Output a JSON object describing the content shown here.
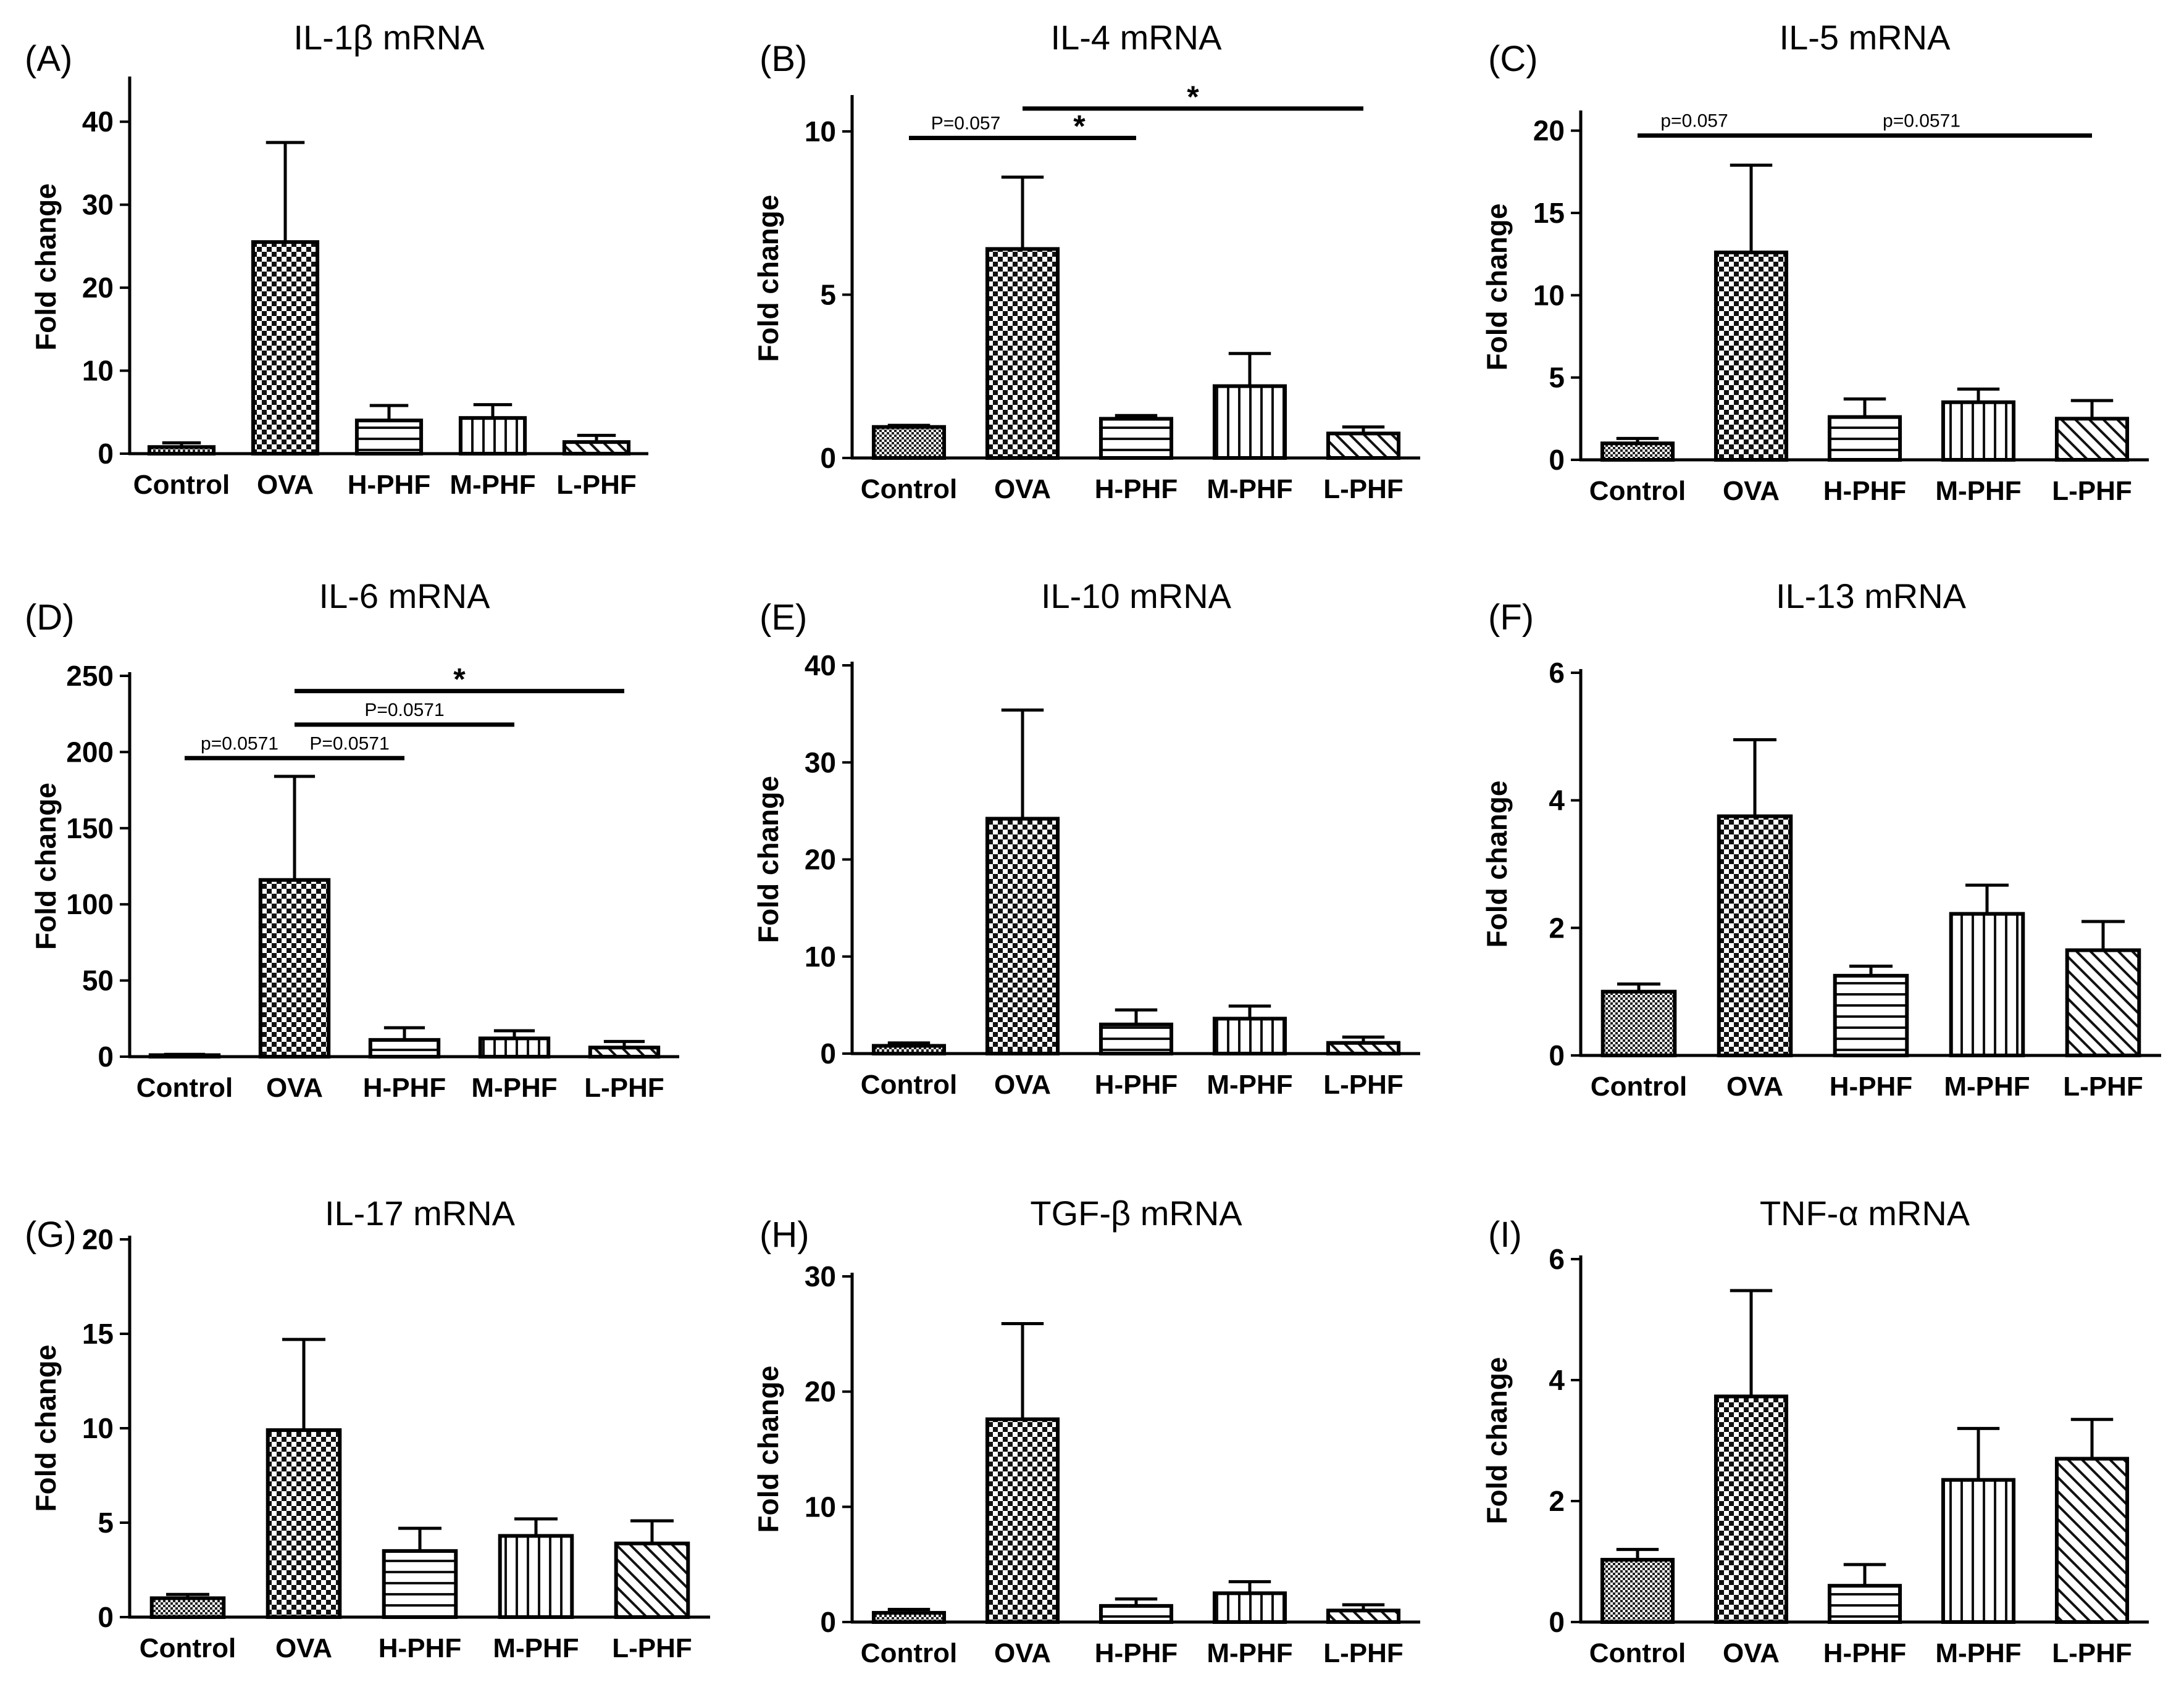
{
  "chart_data": [
    {
      "type": "bar",
      "label": "(A)",
      "title": "IL-1β mRNA",
      "ylabel": "Fold change",
      "categories": [
        "Control",
        "OVA",
        "H-PHF",
        "M-PHF",
        "L-PHF"
      ],
      "values": [
        0.8,
        25.5,
        4.0,
        4.3,
        1.4
      ],
      "errors": [
        0.5,
        12.0,
        1.8,
        1.6,
        0.8
      ],
      "ylim": [
        0,
        45
      ],
      "yticks": [
        "0",
        "10",
        "20",
        "30",
        "40"
      ],
      "annotations": []
    },
    {
      "type": "bar",
      "label": "(B)",
      "title": "IL-4 mRNA",
      "ylabel": "Fold change",
      "categories": [
        "Control",
        "OVA",
        "H-PHF",
        "M-PHF",
        "L-PHF"
      ],
      "values": [
        0.95,
        6.4,
        1.2,
        2.2,
        0.75
      ],
      "errors": [
        0.05,
        2.2,
        0.1,
        1.0,
        0.2
      ],
      "ylim": [
        0,
        11
      ],
      "yticks": [
        "0",
        "5",
        "10"
      ],
      "annotations": [
        {
          "from": 0,
          "to": 1,
          "y": 9.8,
          "text": "P=0.057"
        },
        {
          "from": 1,
          "to": 2,
          "y": 9.8,
          "text": "*"
        },
        {
          "from": 1,
          "to": 4,
          "y": 10.7,
          "text": "*"
        }
      ]
    },
    {
      "type": "bar",
      "label": "(C)",
      "title": "IL-5 mRNA",
      "ylabel": "Fold change",
      "categories": [
        "Control",
        "OVA",
        "H-PHF",
        "M-PHF",
        "L-PHF"
      ],
      "values": [
        1.0,
        12.6,
        2.6,
        3.5,
        2.5
      ],
      "errors": [
        0.3,
        5.3,
        1.1,
        0.8,
        1.1
      ],
      "ylim": [
        0,
        21
      ],
      "yticks": [
        "0",
        "5",
        "10",
        "15",
        "20"
      ],
      "annotations": [
        {
          "from": 0,
          "to": 1,
          "y": 19.7,
          "text": "p=0.057"
        },
        {
          "from": 1,
          "to": 4,
          "y": 19.7,
          "text": "p=0.0571"
        }
      ]
    },
    {
      "type": "bar",
      "label": "(D)",
      "title": "IL-6 mRNA",
      "ylabel": "Fold change",
      "categories": [
        "Control",
        "OVA",
        "H-PHF",
        "M-PHF",
        "L-PHF"
      ],
      "values": [
        1.0,
        116,
        11,
        12,
        6
      ],
      "errors": [
        0.5,
        68,
        8,
        5,
        4
      ],
      "ylim": [
        0,
        250
      ],
      "yticks": [
        "0",
        "50",
        "100",
        "150",
        "200",
        "250"
      ],
      "annotations": [
        {
          "from": 0,
          "to": 1,
          "y": 196,
          "text": "p=0.0571"
        },
        {
          "from": 1,
          "to": 2,
          "y": 196,
          "text": "P=0.0571"
        },
        {
          "from": 1,
          "to": 3,
          "y": 218,
          "text": "P=0.0571"
        },
        {
          "from": 1,
          "to": 4,
          "y": 240,
          "text": "*"
        }
      ]
    },
    {
      "type": "bar",
      "label": "(E)",
      "title": "IL-10 mRNA",
      "ylabel": "Fold change",
      "categories": [
        "Control",
        "OVA",
        "H-PHF",
        "M-PHF",
        "L-PHF"
      ],
      "values": [
        0.8,
        24.2,
        3.0,
        3.6,
        1.1
      ],
      "errors": [
        0.3,
        11.2,
        1.5,
        1.3,
        0.6
      ],
      "ylim": [
        0,
        40
      ],
      "yticks": [
        "0",
        "10",
        "20",
        "30",
        "40"
      ],
      "annotations": []
    },
    {
      "type": "bar",
      "label": "(F)",
      "title": "IL-13 mRNA",
      "ylabel": "Fold change",
      "categories": [
        "Control",
        "OVA",
        "H-PHF",
        "M-PHF",
        "L-PHF"
      ],
      "values": [
        1.0,
        3.75,
        1.25,
        2.22,
        1.65
      ],
      "errors": [
        0.12,
        1.2,
        0.15,
        0.45,
        0.45
      ],
      "ylim": [
        0,
        6
      ],
      "yticks": [
        "0",
        "2",
        "4",
        "6"
      ],
      "annotations": []
    },
    {
      "type": "bar",
      "label": "(G)",
      "title": "IL-17 mRNA",
      "ylabel": "Fold change",
      "categories": [
        "Control",
        "OVA",
        "H-PHF",
        "M-PHF",
        "L-PHF"
      ],
      "values": [
        1.0,
        9.9,
        3.5,
        4.3,
        3.9
      ],
      "errors": [
        0.2,
        4.8,
        1.2,
        0.9,
        1.2
      ],
      "ylim": [
        0,
        20
      ],
      "yticks": [
        "0",
        "5",
        "10",
        "15",
        "20"
      ],
      "annotations": []
    },
    {
      "type": "bar",
      "label": "(H)",
      "title": "TGF-β mRNA",
      "ylabel": "Fold change",
      "categories": [
        "Control",
        "OVA",
        "H-PHF",
        "M-PHF",
        "L-PHF"
      ],
      "values": [
        0.8,
        17.6,
        1.4,
        2.5,
        1.0
      ],
      "errors": [
        0.3,
        8.3,
        0.6,
        1.0,
        0.5
      ],
      "ylim": [
        0,
        30
      ],
      "yticks": [
        "0",
        "10",
        "20",
        "30"
      ],
      "annotations": []
    },
    {
      "type": "bar",
      "label": "(I)",
      "title": "TNF-α mRNA",
      "ylabel": "Fold change",
      "categories": [
        "Control",
        "OVA",
        "H-PHF",
        "M-PHF",
        "L-PHF"
      ],
      "values": [
        1.03,
        3.73,
        0.6,
        2.35,
        2.7
      ],
      "errors": [
        0.17,
        1.75,
        0.35,
        0.85,
        0.65
      ],
      "ylim": [
        0,
        6
      ],
      "yticks": [
        "0",
        "2",
        "4",
        "6"
      ],
      "annotations": []
    }
  ]
}
